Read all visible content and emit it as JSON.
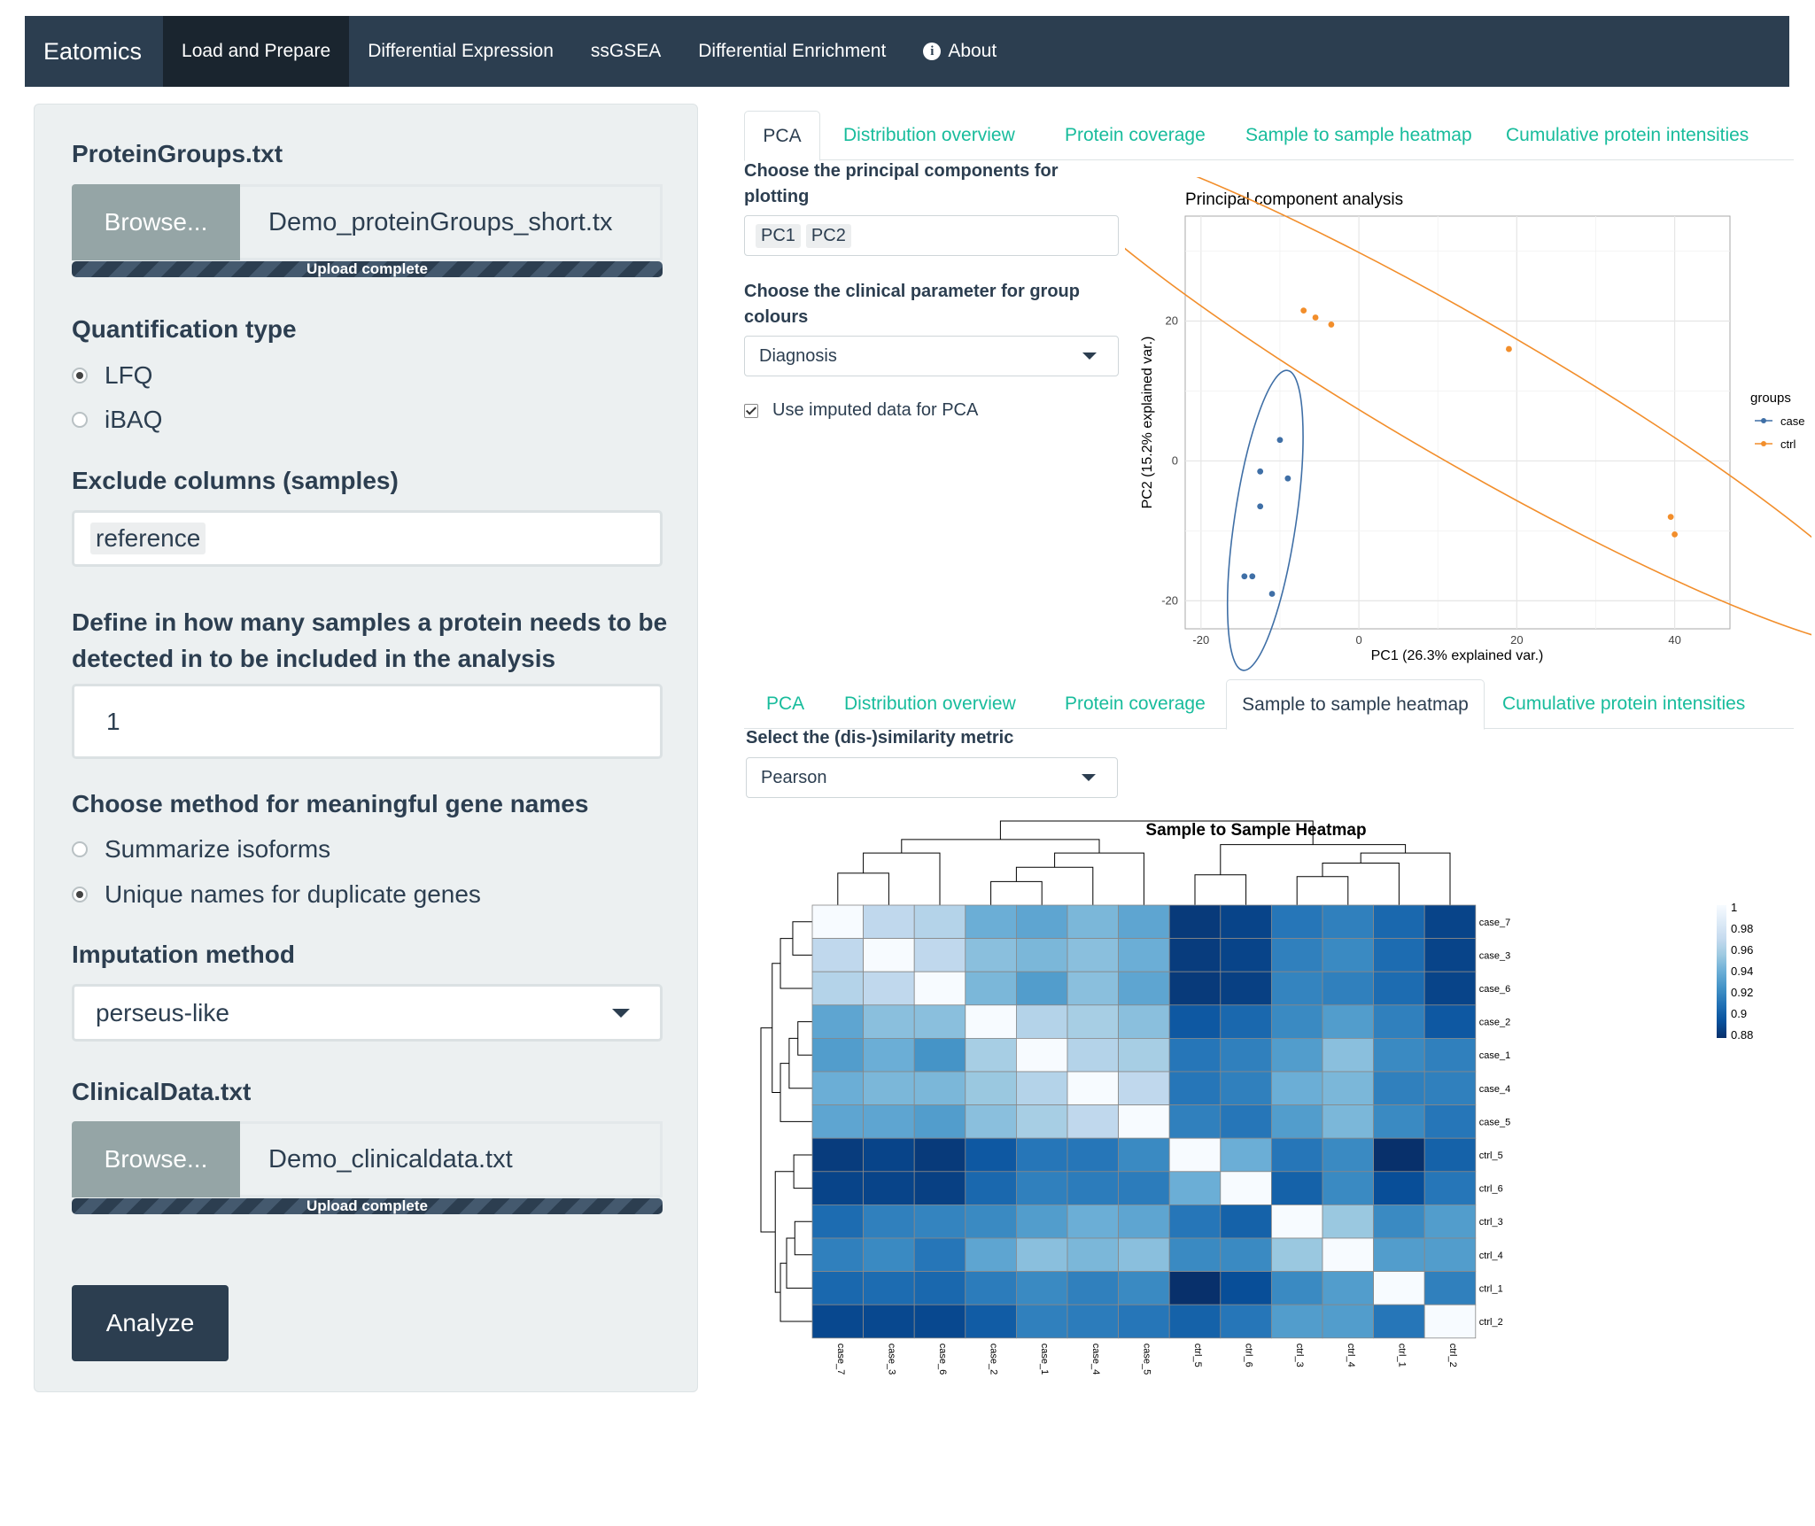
{
  "navbar": {
    "brand": "Eatomics",
    "items": [
      {
        "label": "Load and Prepare",
        "active": true
      },
      {
        "label": "Differential Expression"
      },
      {
        "label": "ssGSEA"
      },
      {
        "label": "Differential Enrichment"
      },
      {
        "label": "About",
        "icon": "info-icon"
      }
    ]
  },
  "sidebar": {
    "protein_groups_label": "ProteinGroups.txt",
    "browse_label": "Browse...",
    "protein_file_name": "Demo_proteinGroups_short.tx",
    "upload_status": "Upload complete",
    "quant_label": "Quantification type",
    "quant_options": [
      {
        "label": "LFQ",
        "selected": true
      },
      {
        "label": "iBAQ",
        "selected": false
      }
    ],
    "exclude_label": "Exclude columns (samples)",
    "exclude_value": "reference",
    "detect_label": "Define in how many samples a protein needs to be detected in to be included in the analysis",
    "detect_value": "1",
    "gene_names_label": "Choose method for meaningful gene names",
    "gene_options": [
      {
        "label": "Summarize isoforms",
        "selected": false
      },
      {
        "label": "Unique names for duplicate genes",
        "selected": true
      }
    ],
    "imputation_label": "Imputation method",
    "imputation_value": "perseus-like",
    "clinical_label": "ClinicalData.txt",
    "clinical_browse_label": "Browse...",
    "clinical_file_name": "Demo_clinicaldata.txt",
    "clinical_upload_status": "Upload complete",
    "analyze_label": "Analyze"
  },
  "tabs": [
    "PCA",
    "Distribution overview",
    "Protein coverage",
    "Sample to sample heatmap",
    "Cumulative protein intensities"
  ],
  "pca_panel": {
    "active_tab": "PCA",
    "pc_label": "Choose the principal components for plotting",
    "pc_values": [
      "PC1",
      "PC2"
    ],
    "clinical_param_label": "Choose the clinical parameter for group colours",
    "clinical_param_value": "Diagnosis",
    "imputed_checkbox_label": "Use imputed data for PCA",
    "imputed_checked": true
  },
  "heatmap_panel": {
    "active_tab": "Sample to sample heatmap",
    "metric_label": "Select the (dis-)similarity metric",
    "metric_value": "Pearson"
  },
  "chart_data": [
    {
      "type": "scatter",
      "title": "Principal component analysis",
      "xlabel": "PC1 (26.3% explained var.)",
      "ylabel": "PC2 (15.2% explained var.)",
      "xlim": [
        -22,
        47
      ],
      "ylim": [
        -24,
        35
      ],
      "xticks": [
        -20,
        0,
        20,
        40
      ],
      "yticks": [
        -20,
        0,
        20
      ],
      "grid": true,
      "legend": {
        "title": "groups",
        "placement": "right"
      },
      "series": [
        {
          "name": "case",
          "color": "#3f6fa6",
          "points": [
            [
              -10,
              3
            ],
            [
              -12.5,
              -1.5
            ],
            [
              -9,
              -2.5
            ],
            [
              -12.5,
              -6.5
            ],
            [
              -14.5,
              -16.5
            ],
            [
              -13.5,
              -16.5
            ],
            [
              -11,
              -19
            ]
          ]
        },
        {
          "name": "ctrl",
          "color": "#f28e2b",
          "points": [
            [
              -7,
              21.5
            ],
            [
              -5.5,
              20.5
            ],
            [
              -3.5,
              19.5
            ],
            [
              19,
              16
            ],
            [
              39.5,
              -8
            ],
            [
              40,
              -10.5
            ]
          ]
        }
      ]
    },
    {
      "type": "heatmap",
      "title": "Sample to Sample Heatmap",
      "rows": [
        "case_7",
        "case_3",
        "case_6",
        "case_2",
        "case_1",
        "case_4",
        "case_5",
        "ctrl_5",
        "ctrl_6",
        "ctrl_3",
        "ctrl_4",
        "ctrl_1",
        "ctrl_2"
      ],
      "columns": [
        "case_7",
        "case_3",
        "case_6",
        "case_2",
        "case_1",
        "case_4",
        "case_5",
        "ctrl_5",
        "ctrl_6",
        "ctrl_3",
        "ctrl_4",
        "ctrl_1",
        "ctrl_2"
      ],
      "color_scale": {
        "ticks": [
          "1",
          "0.98",
          "0.96",
          "0.94",
          "0.92",
          "0.9",
          "0.88"
        ],
        "low_color": "#08306b",
        "high_color": "#f7fbff"
      },
      "values": [
        [
          1.0,
          0.965,
          0.96,
          0.935,
          0.93,
          0.94,
          0.93,
          0.875,
          0.88,
          0.905,
          0.91,
          0.898,
          0.88
        ],
        [
          0.965,
          1.0,
          0.965,
          0.945,
          0.94,
          0.945,
          0.935,
          0.876,
          0.88,
          0.91,
          0.915,
          0.9,
          0.88
        ],
        [
          0.96,
          0.965,
          1.0,
          0.94,
          0.925,
          0.945,
          0.93,
          0.875,
          0.878,
          0.912,
          0.91,
          0.9,
          0.88
        ],
        [
          0.93,
          0.945,
          0.945,
          1.0,
          0.96,
          0.955,
          0.945,
          0.89,
          0.898,
          0.915,
          0.925,
          0.91,
          0.89
        ],
        [
          0.925,
          0.935,
          0.92,
          0.955,
          1.0,
          0.96,
          0.955,
          0.905,
          0.91,
          0.925,
          0.945,
          0.915,
          0.91
        ],
        [
          0.935,
          0.94,
          0.94,
          0.95,
          0.96,
          1.0,
          0.965,
          0.905,
          0.91,
          0.935,
          0.94,
          0.91,
          0.91
        ],
        [
          0.93,
          0.93,
          0.925,
          0.945,
          0.955,
          0.965,
          1.0,
          0.91,
          0.905,
          0.925,
          0.94,
          0.915,
          0.905
        ],
        [
          0.876,
          0.88,
          0.875,
          0.89,
          0.905,
          0.905,
          0.915,
          1.0,
          0.935,
          0.905,
          0.915,
          0.87,
          0.895
        ],
        [
          0.88,
          0.88,
          0.878,
          0.898,
          0.91,
          0.908,
          0.908,
          0.935,
          1.0,
          0.895,
          0.915,
          0.885,
          0.905
        ],
        [
          0.9,
          0.91,
          0.912,
          0.915,
          0.925,
          0.935,
          0.93,
          0.905,
          0.895,
          1.0,
          0.95,
          0.915,
          0.925
        ],
        [
          0.91,
          0.915,
          0.905,
          0.93,
          0.945,
          0.94,
          0.945,
          0.915,
          0.915,
          0.95,
          1.0,
          0.925,
          0.925
        ],
        [
          0.898,
          0.9,
          0.898,
          0.908,
          0.915,
          0.91,
          0.915,
          0.87,
          0.885,
          0.915,
          0.925,
          1.0,
          0.91
        ],
        [
          0.882,
          0.882,
          0.882,
          0.892,
          0.91,
          0.908,
          0.905,
          0.895,
          0.905,
          0.925,
          0.925,
          0.905,
          1.0
        ]
      ]
    }
  ]
}
